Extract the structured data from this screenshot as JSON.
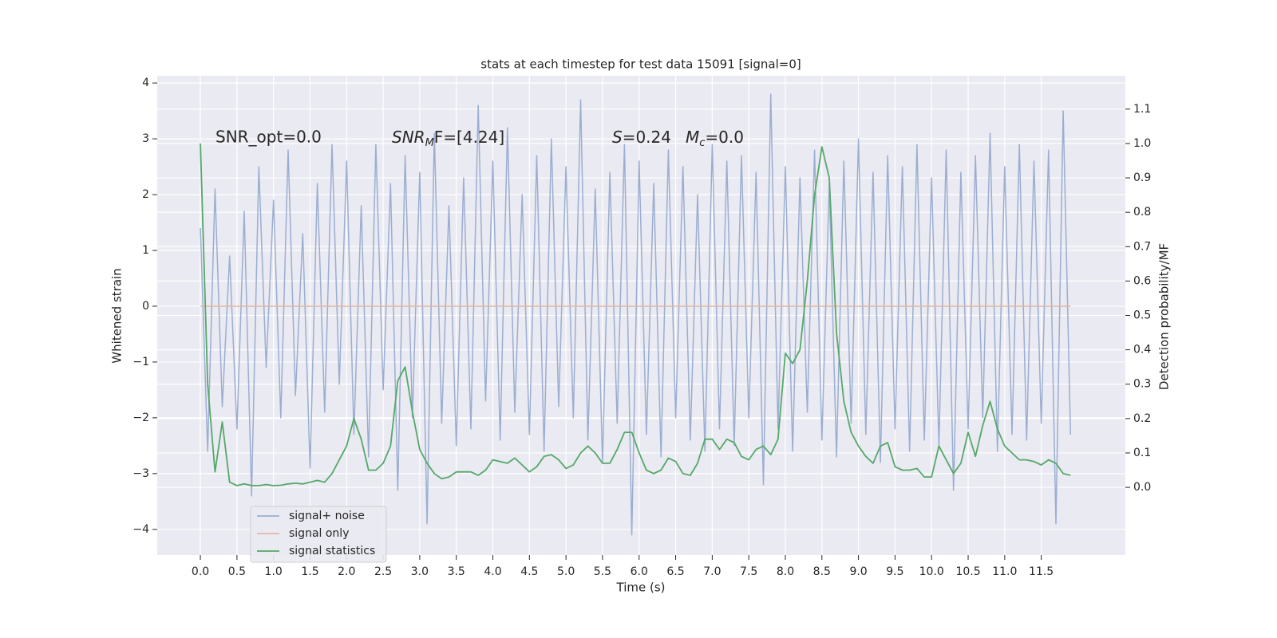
{
  "chart_data": {
    "type": "line",
    "title": "stats at each timestep for test data 15091 [signal=0]",
    "xlabel": "Time (s)",
    "ylabel": "Whitened strain",
    "y2label": "Detection probability/MF",
    "annotations": {
      "snr_opt": "SNR_opt=0.0",
      "snr_mf_base": "SNR",
      "snr_mf_sub": "M",
      "snr_mf_rest": "F=[4.24]",
      "s_base": "S",
      "s_rest": "=0.24",
      "mc_base": "M",
      "mc_sub": "c",
      "mc_rest": "=0.0"
    },
    "x": [
      0,
      0.1,
      0.2,
      0.3,
      0.4,
      0.5,
      0.6,
      0.7,
      0.8,
      0.9,
      1,
      1.1,
      1.2,
      1.3,
      1.4,
      1.5,
      1.6,
      1.7,
      1.8,
      1.9,
      2,
      2.1,
      2.2,
      2.3,
      2.4,
      2.5,
      2.6,
      2.7,
      2.8,
      2.9,
      3,
      3.1,
      3.2,
      3.3,
      3.4,
      3.5,
      3.6,
      3.7,
      3.8,
      3.9,
      4,
      4.1,
      4.2,
      4.3,
      4.4,
      4.5,
      4.6,
      4.7,
      4.8,
      4.9,
      5,
      5.1,
      5.2,
      5.3,
      5.4,
      5.5,
      5.6,
      5.7,
      5.8,
      5.9,
      6,
      6.1,
      6.2,
      6.3,
      6.4,
      6.5,
      6.6,
      6.7,
      6.8,
      6.9,
      7,
      7.1,
      7.2,
      7.3,
      7.4,
      7.5,
      7.6,
      7.7,
      7.8,
      7.9,
      8,
      8.1,
      8.2,
      8.3,
      8.4,
      8.5,
      8.6,
      8.7,
      8.8,
      8.9,
      9,
      9.1,
      9.2,
      9.3,
      9.4,
      9.5,
      9.6,
      9.7,
      9.8,
      9.9,
      10,
      10.1,
      10.2,
      10.3,
      10.4,
      10.5,
      10.6,
      10.7,
      10.8,
      10.9,
      11,
      11.1,
      11.2,
      11.3,
      11.4,
      11.5,
      11.6,
      11.7,
      11.8,
      11.9
    ],
    "series": [
      {
        "name": "signal+ noise",
        "color": "#9baed1",
        "values": [
          1.4,
          -2.6,
          2.1,
          -1.8,
          0.9,
          -2.2,
          1.7,
          -3.4,
          2.5,
          -1.1,
          1.9,
          -2.0,
          2.8,
          -1.6,
          1.3,
          -2.9,
          2.2,
          -1.9,
          2.9,
          -1.4,
          2.6,
          -2.3,
          1.8,
          -2.7,
          2.9,
          -1.5,
          2.2,
          -3.3,
          2.7,
          -2.0,
          2.4,
          -3.9,
          3.1,
          -2.1,
          1.8,
          -2.5,
          2.3,
          -2.2,
          3.6,
          -1.7,
          2.6,
          -2.4,
          3.2,
          -1.9,
          2.0,
          -2.3,
          2.7,
          -2.6,
          3.0,
          -1.8,
          2.5,
          -2.0,
          3.7,
          -2.4,
          2.1,
          -2.8,
          2.4,
          -2.1,
          2.9,
          -4.1,
          2.6,
          -2.3,
          2.2,
          -2.7,
          2.8,
          -2.0,
          2.5,
          -2.4,
          2.0,
          -2.6,
          2.9,
          -2.2,
          2.6,
          -2.5,
          2.7,
          -2.0,
          2.4,
          -3.2,
          3.8,
          -2.2,
          2.5,
          -2.6,
          2.3,
          -1.9,
          2.8,
          -2.4,
          2.2,
          -2.7,
          2.6,
          -2.1,
          3.0,
          -2.3,
          2.4,
          -2.8,
          2.7,
          -2.2,
          2.5,
          -2.6,
          2.9,
          -2.4,
          2.3,
          -2.5,
          2.8,
          -3.3,
          2.4,
          -2.2,
          2.7,
          -2.0,
          3.1,
          -2.6,
          2.5,
          -2.3,
          2.9,
          -2.4,
          2.6,
          -2.1,
          2.8,
          -3.9,
          3.5,
          -2.3
        ]
      },
      {
        "name": "signal only",
        "color": "#e3b7a2",
        "values": [
          0,
          0,
          0,
          0,
          0,
          0,
          0,
          0,
          0,
          0,
          0,
          0,
          0,
          0,
          0,
          0,
          0,
          0,
          0,
          0,
          0,
          0,
          0,
          0,
          0,
          0,
          0,
          0,
          0,
          0,
          0,
          0,
          0,
          0,
          0,
          0,
          0,
          0,
          0,
          0,
          0,
          0,
          0,
          0,
          0,
          0,
          0,
          0,
          0,
          0,
          0,
          0,
          0,
          0,
          0,
          0,
          0,
          0,
          0,
          0,
          0,
          0,
          0,
          0,
          0,
          0,
          0,
          0,
          0,
          0,
          0,
          0,
          0,
          0,
          0,
          0,
          0,
          0,
          0,
          0,
          0,
          0,
          0,
          0,
          0,
          0,
          0,
          0,
          0,
          0,
          0,
          0,
          0,
          0,
          0,
          0,
          0,
          0,
          0,
          0,
          0,
          0,
          0,
          0,
          0,
          0,
          0,
          0,
          0,
          0,
          0,
          0,
          0,
          0,
          0,
          0,
          0,
          0,
          0,
          0
        ]
      },
      {
        "name": "signal statistics",
        "color": "#55a868",
        "axis": "y2",
        "values": [
          1.0,
          0.3,
          0.045,
          0.19,
          0.015,
          0.005,
          0.01,
          0.005,
          0.005,
          0.008,
          0.005,
          0.006,
          0.01,
          0.012,
          0.01,
          0.015,
          0.02,
          0.015,
          0.04,
          0.08,
          0.12,
          0.2,
          0.14,
          0.05,
          0.05,
          0.07,
          0.12,
          0.31,
          0.35,
          0.22,
          0.11,
          0.07,
          0.04,
          0.025,
          0.03,
          0.045,
          0.045,
          0.045,
          0.035,
          0.05,
          0.08,
          0.075,
          0.07,
          0.085,
          0.065,
          0.045,
          0.06,
          0.09,
          0.095,
          0.08,
          0.055,
          0.065,
          0.1,
          0.12,
          0.1,
          0.07,
          0.07,
          0.11,
          0.16,
          0.16,
          0.1,
          0.05,
          0.04,
          0.05,
          0.085,
          0.075,
          0.04,
          0.035,
          0.07,
          0.14,
          0.14,
          0.11,
          0.14,
          0.13,
          0.09,
          0.08,
          0.11,
          0.12,
          0.095,
          0.14,
          0.39,
          0.36,
          0.4,
          0.6,
          0.85,
          0.99,
          0.9,
          0.45,
          0.25,
          0.16,
          0.12,
          0.09,
          0.07,
          0.12,
          0.13,
          0.06,
          0.05,
          0.05,
          0.055,
          0.03,
          0.03,
          0.12,
          0.08,
          0.04,
          0.07,
          0.16,
          0.09,
          0.18,
          0.25,
          0.17,
          0.12,
          0.1,
          0.08,
          0.08,
          0.075,
          0.065,
          0.08,
          0.07,
          0.04,
          0.035
        ]
      }
    ],
    "xlim": [
      -0.59,
      12.65
    ],
    "xticks": [
      {
        "value": 0,
        "label": "0.0"
      },
      0.5,
      {
        "value": 1,
        "label": "1.0"
      },
      1.5,
      {
        "value": 2,
        "label": "2.0"
      },
      2.5,
      {
        "value": 3,
        "label": "3.0"
      },
      3.5,
      {
        "value": 4,
        "label": "4.0"
      },
      4.5,
      {
        "value": 5,
        "label": "5.0"
      },
      5.5,
      {
        "value": 6,
        "label": "6.0"
      },
      6.5,
      {
        "value": 7,
        "label": "7.0"
      },
      7.5,
      {
        "value": 8,
        "label": "8.0"
      },
      8.5,
      {
        "value": 9,
        "label": "9.0"
      },
      9.5,
      {
        "value": 10,
        "label": "10.0"
      },
      10.5,
      {
        "value": 11,
        "label": "11.0"
      },
      11.5
    ],
    "ylim": [
      -4.46,
      4.13
    ],
    "yticks": [
      {
        "value": -4,
        "label": "−4"
      },
      {
        "value": -3,
        "label": "−3"
      },
      {
        "value": -2,
        "label": "−2"
      },
      {
        "value": -1,
        "label": "−1"
      },
      0,
      1,
      2,
      3,
      4
    ],
    "y2lim": [
      -0.197,
      1.197
    ],
    "y2ticks": [
      {
        "value": 0,
        "label": "0.0"
      },
      0.1,
      0.2,
      0.3,
      0.4,
      0.5,
      0.6,
      0.7,
      0.8,
      0.9,
      {
        "value": 1,
        "label": "1.0"
      },
      1.1
    ],
    "grid": true,
    "legend": "lower left"
  }
}
